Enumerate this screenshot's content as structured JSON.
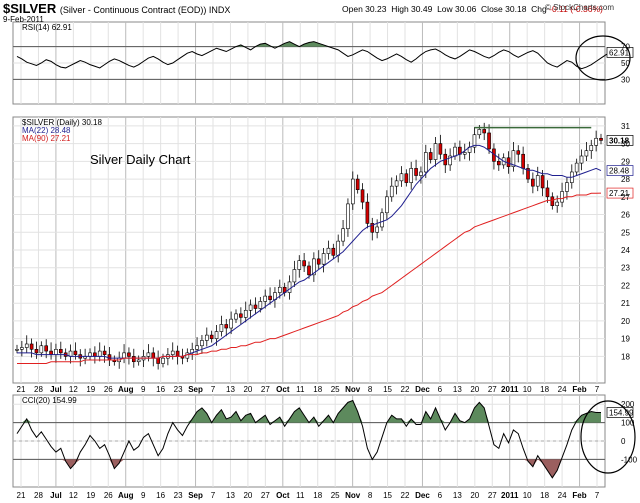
{
  "header": {
    "symbol": "$SILVER",
    "description": "(Silver - Continuous Contract (EOD))  INDX",
    "date": "9-Feb-2011",
    "quote": {
      "open_label": "Open",
      "open": "30.23",
      "high_label": "High",
      "high": "30.49",
      "low_label": "Low",
      "low": "30.06",
      "close_label": "Close",
      "close": "30.18",
      "chg_label": "Chg",
      "chg": "-0.11 (-0.36%)"
    },
    "brand": "© StockCharts.com"
  },
  "annotation": "Silver Daily Chart",
  "colors": {
    "candle_up": "#ffffff",
    "candle_down": "#d40000",
    "ma22": "#1f1f8f",
    "ma90": "#e02020",
    "fill": "#5d8a5d",
    "circle": "#000000"
  },
  "chart_data": [
    {
      "type": "line",
      "panel": "rsi",
      "title": "RSI(14) 62.91",
      "ylim": [
        0,
        100
      ],
      "yticks": [
        30,
        50,
        70
      ],
      "lines": [
        30,
        70
      ],
      "last_value_label": "62.91",
      "series": [
        {
          "name": "RSI(14)",
          "values": [
            58,
            55,
            51,
            49,
            47,
            50,
            54,
            52,
            48,
            45,
            44,
            47,
            50,
            53,
            51,
            48,
            46,
            44,
            48,
            52,
            55,
            53,
            50,
            47,
            45,
            48,
            52,
            56,
            58,
            55,
            51,
            48,
            50,
            54,
            58,
            62,
            64,
            61,
            59,
            62,
            65,
            68,
            66,
            64,
            67,
            70,
            72,
            69,
            66,
            70,
            73,
            74,
            71,
            68,
            71,
            74,
            76,
            73,
            70,
            73,
            75,
            76,
            74,
            72,
            70,
            68,
            66,
            62,
            58,
            60,
            63,
            66,
            64,
            60,
            56,
            53,
            55,
            58,
            61,
            58,
            54,
            51,
            55,
            60,
            64,
            66,
            67,
            64,
            60,
            57,
            55,
            58,
            62,
            66,
            64,
            61,
            58,
            56,
            59,
            63,
            66,
            64,
            60,
            57,
            60,
            63,
            65,
            62,
            56,
            50,
            47,
            45,
            49,
            53,
            51,
            46,
            43,
            45,
            48,
            52,
            56,
            60,
            63,
            61,
            62.91
          ]
        }
      ]
    },
    {
      "type": "bar",
      "panel": "price",
      "title": "$SILVER (Daily) 30.18",
      "ylim": [
        16.5,
        31.5
      ],
      "yticks": [
        18,
        19,
        20,
        21,
        22,
        23,
        24,
        25,
        26,
        27,
        28,
        29,
        30,
        31
      ],
      "x_ticks": [
        "21",
        "28",
        "Jul",
        "12",
        "19",
        "26",
        "Aug",
        "9",
        "16",
        "23",
        "Sep",
        "7",
        "13",
        "20",
        "27",
        "Oct",
        "11",
        "18",
        "25",
        "Nov",
        "8",
        "15",
        "22",
        "Dec",
        "6",
        "13",
        "20",
        "27",
        "2011",
        "10",
        "18",
        "24",
        "Feb",
        "7"
      ],
      "major_ticks": [
        "Jul",
        "Aug",
        "Sep",
        "Oct",
        "Nov",
        "Dec",
        "2011",
        "Feb"
      ],
      "resistance": 30.9,
      "last_labels": {
        "close": "30.18",
        "ma22": "28.48",
        "ma90": "27.21"
      },
      "series": [
        {
          "name": "MA(22) 28.48",
          "values": [
            18.2,
            18.2,
            18.2,
            18.2,
            18.1,
            18.1,
            18.1,
            18.1,
            18.1,
            18.1,
            18.1,
            18.0,
            18.0,
            18.0,
            18.0,
            18.0,
            18.0,
            18.0,
            18.0,
            17.9,
            17.9,
            17.9,
            17.9,
            17.9,
            17.9,
            17.9,
            17.9,
            17.9,
            17.9,
            17.9,
            18.0,
            18.0,
            18.0,
            18.0,
            18.0,
            18.1,
            18.2,
            18.3,
            18.4,
            18.5,
            18.6,
            18.8,
            19.0,
            19.2,
            19.4,
            19.6,
            19.8,
            20.0,
            20.2,
            20.4,
            20.6,
            20.8,
            21.0,
            21.2,
            21.4,
            21.6,
            21.8,
            22.0,
            22.2,
            22.3,
            22.5,
            22.7,
            22.9,
            23.1,
            23.3,
            23.5,
            23.7,
            23.9,
            24.2,
            24.5,
            24.8,
            25.1,
            25.3,
            25.4,
            25.5,
            25.6,
            25.7,
            25.9,
            26.2,
            26.5,
            26.9,
            27.3,
            27.7,
            28.0,
            28.3,
            28.6,
            28.8,
            29.0,
            29.1,
            29.2,
            29.3,
            29.4,
            29.6,
            29.8,
            29.9,
            29.9,
            29.8,
            29.6,
            29.4,
            29.2,
            29.0,
            28.9,
            28.8,
            28.7,
            28.6,
            28.5,
            28.5,
            28.4,
            28.3,
            28.3,
            28.2,
            28.2,
            28.2,
            28.1,
            28.1,
            28.2,
            28.3,
            28.4,
            28.5,
            28.6,
            28.48
          ]
        },
        {
          "name": "MA(90) 27.21",
          "values": [
            17.6,
            17.6,
            17.6,
            17.6,
            17.6,
            17.6,
            17.6,
            17.7,
            17.7,
            17.7,
            17.7,
            17.7,
            17.7,
            17.7,
            17.8,
            17.8,
            17.8,
            17.8,
            17.8,
            17.8,
            17.8,
            17.8,
            17.9,
            17.9,
            17.9,
            17.9,
            17.9,
            17.9,
            17.9,
            17.9,
            18.0,
            18.0,
            18.0,
            18.0,
            18.0,
            18.1,
            18.1,
            18.1,
            18.2,
            18.2,
            18.3,
            18.3,
            18.4,
            18.4,
            18.5,
            18.5,
            18.6,
            18.6,
            18.7,
            18.8,
            18.8,
            18.9,
            19.0,
            19.0,
            19.1,
            19.2,
            19.3,
            19.4,
            19.5,
            19.6,
            19.7,
            19.8,
            19.9,
            20.0,
            20.1,
            20.2,
            20.3,
            20.5,
            20.6,
            20.8,
            20.9,
            21.1,
            21.2,
            21.4,
            21.5,
            21.6,
            21.8,
            22.0,
            22.2,
            22.4,
            22.6,
            22.8,
            23.0,
            23.2,
            23.4,
            23.6,
            23.8,
            24.0,
            24.2,
            24.4,
            24.6,
            24.8,
            25.0,
            25.1,
            25.3,
            25.4,
            25.5,
            25.6,
            25.7,
            25.8,
            25.9,
            26.0,
            26.1,
            26.2,
            26.3,
            26.4,
            26.5,
            26.6,
            26.7,
            26.8,
            26.8,
            26.9,
            26.9,
            27.0,
            27.0,
            27.1,
            27.1,
            27.1,
            27.2,
            27.2,
            27.21
          ]
        },
        {
          "name": "$SILVER",
          "values": [
            18.4,
            18.5,
            18.7,
            18.4,
            18.2,
            18.6,
            18.3,
            18.1,
            18.4,
            18.2,
            18.0,
            18.3,
            18.1,
            17.9,
            18.0,
            18.2,
            18.0,
            18.3,
            18.1,
            17.8,
            17.7,
            17.9,
            18.2,
            18.0,
            17.7,
            17.8,
            18.0,
            18.2,
            17.9,
            17.6,
            17.9,
            18.1,
            18.3,
            18.0,
            17.9,
            18.2,
            18.4,
            18.6,
            18.9,
            19.2,
            19.0,
            19.4,
            19.8,
            19.6,
            20.1,
            20.4,
            20.2,
            20.6,
            20.9,
            20.7,
            21.1,
            21.4,
            21.2,
            21.6,
            21.9,
            21.6,
            22.2,
            22.9,
            23.4,
            23.1,
            22.6,
            23.5,
            23.2,
            23.8,
            24.1,
            23.7,
            24.5,
            25.2,
            26.6,
            28.0,
            27.4,
            26.7,
            25.5,
            25.0,
            25.3,
            26.1,
            27.0,
            27.6,
            27.9,
            28.3,
            27.8,
            28.6,
            28.2,
            28.4,
            29.5,
            29.1,
            30.0,
            29.4,
            28.8,
            29.3,
            29.8,
            29.4,
            29.5,
            29.8,
            30.5,
            30.8,
            30.6,
            29.7,
            29.0,
            28.8,
            29.2,
            28.7,
            29.6,
            29.4,
            28.6,
            28.0,
            27.6,
            28.2,
            27.5,
            27.0,
            26.5,
            26.7,
            27.3,
            27.8,
            28.4,
            28.9,
            29.3,
            29.6,
            29.9,
            30.3,
            30.18
          ]
        }
      ]
    },
    {
      "type": "line",
      "panel": "cci",
      "title": "CCI(20) 154.99",
      "ylim": [
        -250,
        250
      ],
      "yticks": [
        -100,
        0,
        100,
        200
      ],
      "lines": [
        -100,
        100
      ],
      "last_value_label": "154.99",
      "series": [
        {
          "name": "CCI(20)",
          "values": [
            40,
            80,
            120,
            60,
            20,
            50,
            10,
            -30,
            -60,
            -40,
            -110,
            -150,
            -120,
            -60,
            -20,
            30,
            0,
            -40,
            -20,
            -80,
            -150,
            -120,
            -60,
            0,
            -50,
            -30,
            20,
            40,
            -20,
            -80,
            -40,
            40,
            100,
            60,
            30,
            80,
            120,
            160,
            180,
            150,
            100,
            140,
            170,
            120,
            130,
            160,
            110,
            140,
            150,
            100,
            120,
            140,
            90,
            110,
            130,
            80,
            120,
            160,
            180,
            140,
            100,
            130,
            80,
            110,
            140,
            100,
            150,
            180,
            210,
            220,
            160,
            80,
            -40,
            -100,
            -60,
            20,
            100,
            140,
            120,
            120,
            80,
            120,
            90,
            90,
            160,
            120,
            180,
            120,
            60,
            100,
            150,
            110,
            100,
            120,
            180,
            210,
            180,
            80,
            -20,
            -40,
            40,
            -10,
            60,
            40,
            -40,
            -110,
            -140,
            -80,
            -120,
            -160,
            -200,
            -160,
            -90,
            -20,
            60,
            110,
            140,
            150,
            160,
            154.99,
            154.99
          ]
        }
      ]
    }
  ]
}
